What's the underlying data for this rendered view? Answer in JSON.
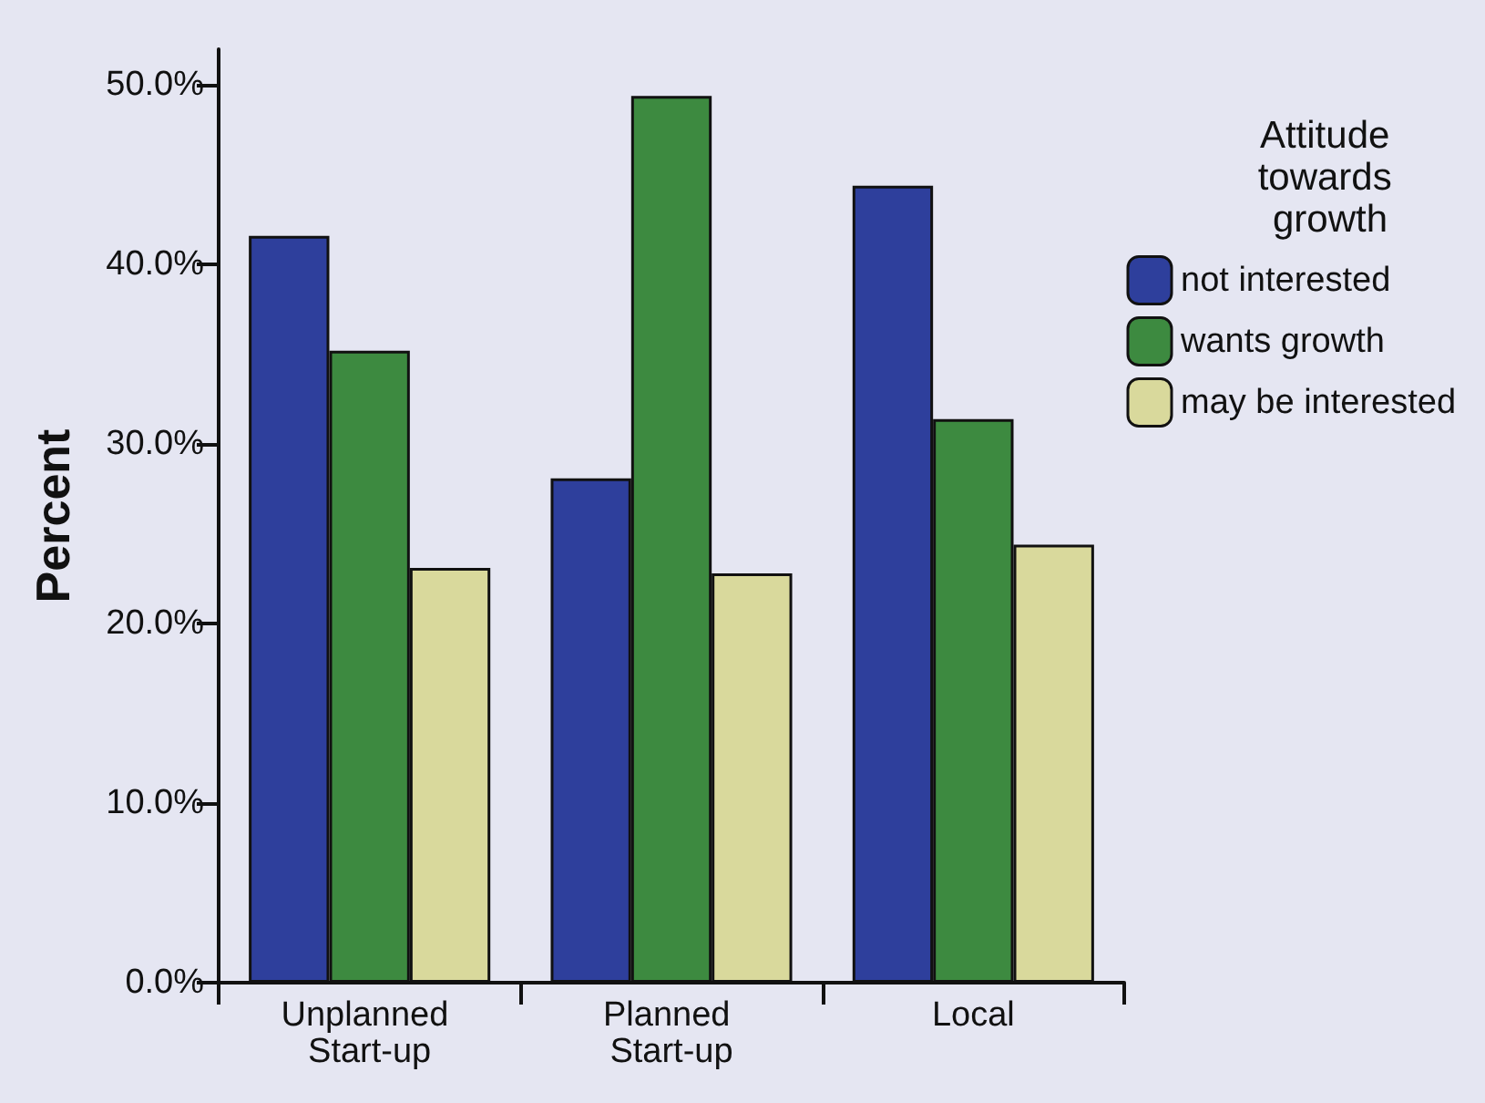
{
  "chart_data": {
    "type": "bar",
    "ylabel": "Percent",
    "legend_title": "Attitude towards growth",
    "legend": "right",
    "categories": [
      "Unplanned Start-up",
      "Planned Start-up",
      "Local"
    ],
    "series": [
      {
        "name": "not interested",
        "color": "#2e3f9c",
        "values": [
          41.6,
          28.1,
          44.4
        ]
      },
      {
        "name": "wants growth",
        "color": "#3d8a40",
        "values": [
          35.2,
          49.4,
          31.4
        ]
      },
      {
        "name": "may be interested",
        "color": "#d9d99c",
        "values": [
          23.1,
          22.8,
          24.4
        ]
      }
    ],
    "ylim": [
      0,
      52
    ],
    "yticks": [
      {
        "value": 0,
        "label": "0.0%"
      },
      {
        "value": 10,
        "label": "10.0%"
      },
      {
        "value": 20,
        "label": "20.0%"
      },
      {
        "value": 30,
        "label": "30.0%"
      },
      {
        "value": 40,
        "label": "40.0%"
      },
      {
        "value": 50,
        "label": "50.0%"
      }
    ],
    "grid": false
  }
}
